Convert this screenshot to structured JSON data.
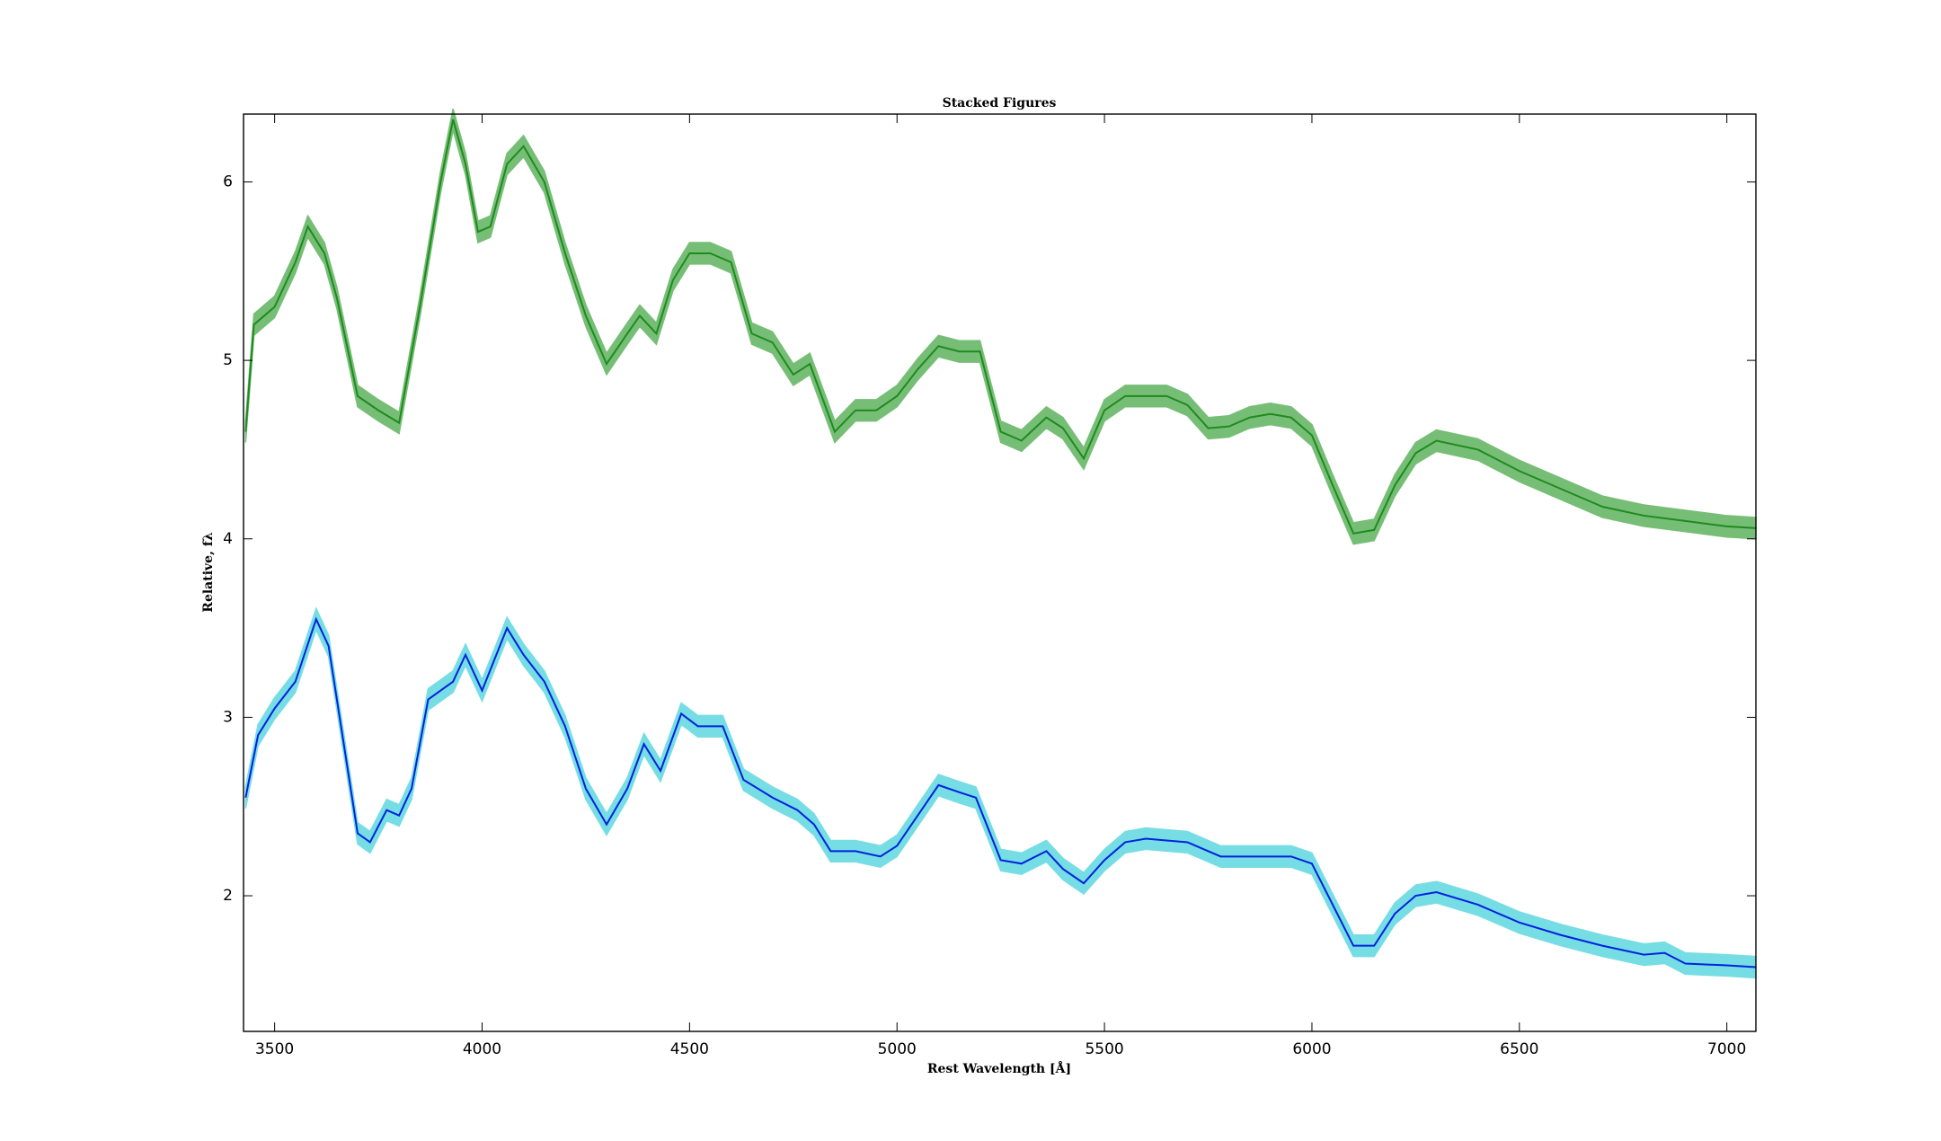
{
  "chart_data": {
    "type": "line",
    "title": "Stacked Figures",
    "xlabel": "Rest Wavelength [Å]",
    "ylabel": "Relative, fλ",
    "xlim": [
      3425,
      7070
    ],
    "ylim": [
      1.24,
      6.38
    ],
    "xticks": [
      3500,
      4000,
      4500,
      5000,
      5500,
      6000,
      6500,
      7000
    ],
    "yticks": [
      2,
      3,
      4,
      5,
      6
    ],
    "series": [
      {
        "color": "#1f8a1f",
        "band_color": "#5fb35f",
        "error": 0.06,
        "x": [
          3430,
          3450,
          3500,
          3550,
          3580,
          3620,
          3650,
          3700,
          3750,
          3800,
          3850,
          3900,
          3930,
          3960,
          3990,
          4020,
          4060,
          4100,
          4150,
          4200,
          4250,
          4300,
          4350,
          4380,
          4420,
          4460,
          4500,
          4550,
          4600,
          4650,
          4700,
          4750,
          4790,
          4850,
          4900,
          4950,
          5000,
          5050,
          5100,
          5150,
          5200,
          5250,
          5300,
          5360,
          5400,
          5450,
          5500,
          5550,
          5650,
          5700,
          5750,
          5800,
          5850,
          5900,
          5950,
          6000,
          6050,
          6100,
          6150,
          6200,
          6250,
          6300,
          6400,
          6500,
          6600,
          6700,
          6800,
          6900,
          7000,
          7070
        ],
        "values": [
          4.6,
          5.2,
          5.3,
          5.55,
          5.75,
          5.6,
          5.35,
          4.8,
          4.72,
          4.65,
          5.3,
          6.0,
          6.35,
          6.1,
          5.72,
          5.75,
          6.1,
          6.2,
          6.0,
          5.6,
          5.25,
          4.98,
          5.15,
          5.25,
          5.15,
          5.45,
          5.6,
          5.6,
          5.55,
          5.15,
          5.1,
          4.92,
          4.98,
          4.6,
          4.72,
          4.72,
          4.8,
          4.95,
          5.08,
          5.05,
          5.05,
          4.6,
          4.55,
          4.68,
          4.62,
          4.45,
          4.72,
          4.8,
          4.8,
          4.75,
          4.62,
          4.63,
          4.68,
          4.7,
          4.68,
          4.58,
          4.3,
          4.03,
          4.05,
          4.3,
          4.48,
          4.55,
          4.5,
          4.38,
          4.28,
          4.18,
          4.13,
          4.1,
          4.07,
          4.06
        ]
      },
      {
        "color": "#0022dd",
        "band_color": "#5fd8e0",
        "error": 0.06,
        "x": [
          3430,
          3460,
          3500,
          3550,
          3600,
          3630,
          3670,
          3700,
          3730,
          3770,
          3800,
          3830,
          3870,
          3930,
          3960,
          4000,
          4060,
          4100,
          4150,
          4200,
          4250,
          4300,
          4350,
          4390,
          4430,
          4480,
          4520,
          4580,
          4630,
          4700,
          4760,
          4800,
          4840,
          4900,
          4960,
          5000,
          5050,
          5100,
          5150,
          5190,
          5250,
          5300,
          5360,
          5400,
          5450,
          5500,
          5550,
          5600,
          5700,
          5780,
          5850,
          5900,
          5950,
          6000,
          6050,
          6100,
          6150,
          6200,
          6250,
          6300,
          6400,
          6500,
          6600,
          6700,
          6800,
          6850,
          6900,
          7000,
          7070
        ],
        "values": [
          2.55,
          2.9,
          3.05,
          3.2,
          3.55,
          3.4,
          2.8,
          2.35,
          2.3,
          2.48,
          2.45,
          2.6,
          3.1,
          3.2,
          3.35,
          3.15,
          3.5,
          3.35,
          3.2,
          2.95,
          2.6,
          2.4,
          2.6,
          2.85,
          2.7,
          3.02,
          2.95,
          2.95,
          2.65,
          2.55,
          2.48,
          2.4,
          2.25,
          2.25,
          2.22,
          2.28,
          2.45,
          2.62,
          2.58,
          2.55,
          2.2,
          2.18,
          2.25,
          2.15,
          2.07,
          2.2,
          2.3,
          2.32,
          2.3,
          2.22,
          2.22,
          2.22,
          2.22,
          2.18,
          1.95,
          1.72,
          1.72,
          1.9,
          2.0,
          2.02,
          1.95,
          1.85,
          1.78,
          1.72,
          1.67,
          1.68,
          1.62,
          1.61,
          1.6
        ]
      }
    ]
  }
}
